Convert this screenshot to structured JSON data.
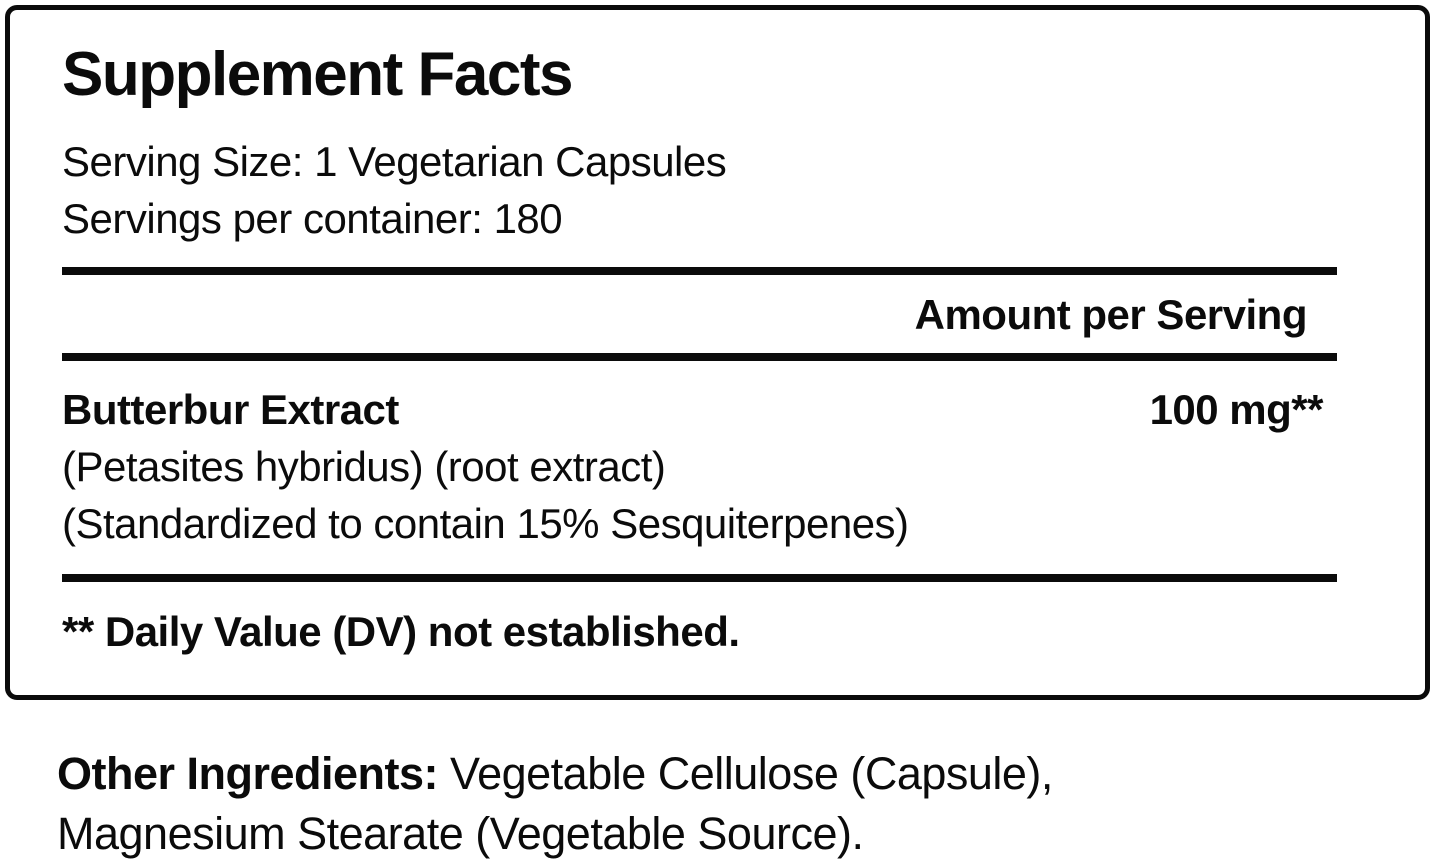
{
  "panel": {
    "title": "Supplement Facts",
    "serving_size": "Serving Size: 1 Vegetarian Capsules",
    "servings_per_container": "Servings per container: 180",
    "amount_header": "Amount per Serving",
    "ingredient": {
      "name": "Butterbur Extract",
      "amount": "100 mg**",
      "detail_line1": "(Petasites hybridus) (root extract)",
      "detail_line2": "(Standardized to contain 15% Sesquiterpenes)"
    },
    "footnote": "** Daily Value (DV) not established."
  },
  "other_ingredients": {
    "label": "Other Ingredients:",
    "line1": " Vegetable Cellulose (Capsule),",
    "line2": "Magnesium Stearate (Vegetable Source)."
  },
  "colors": {
    "text": "#0b0b0b",
    "background": "#ffffff",
    "rule": "#0b0b0b"
  }
}
